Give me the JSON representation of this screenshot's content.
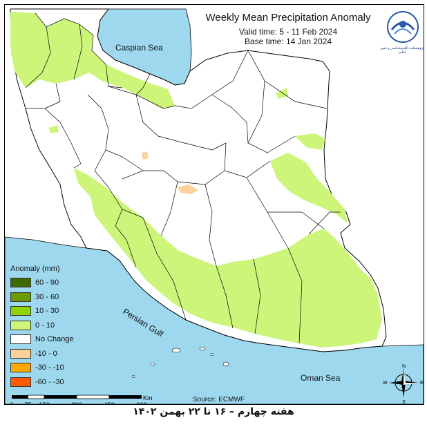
{
  "title": "Weekly Mean Precipitation Anomaly",
  "valid_time": "Valid time:  5 - 11 Feb 2024",
  "base_time": "Base time: 14 Jan 2024",
  "logo": {
    "icon": "org-logo-icon",
    "caption": "پژوهشکده اقلیم‌شناسی و تغییر اقلیم"
  },
  "water_labels": {
    "caspian": "Caspian Sea",
    "gulf": "Persian Gulf",
    "oman": "Oman Sea"
  },
  "legend": {
    "title": "Anomaly (mm)",
    "items": [
      {
        "label": "60 - 90",
        "color": "#3e6b00"
      },
      {
        "label": "30 - 60",
        "color": "#6a9a00"
      },
      {
        "label": "10 - 30",
        "color": "#8fd400"
      },
      {
        "label": "0 - 10",
        "color": "#ccf57a"
      },
      {
        "label": "No Change",
        "color": "#ffffff"
      },
      {
        "label": "-10 - 0",
        "color": "#fdd29a"
      },
      {
        "label": "-30 - -10",
        "color": "#ffa800"
      },
      {
        "label": "-60 - -30",
        "color": "#ff5a00"
      }
    ]
  },
  "scale": {
    "unit": "Km",
    "ticks": [
      "0",
      "75",
      "150",
      "300",
      "450",
      "600"
    ]
  },
  "source": "Source: ECMWF",
  "compass": {
    "icon": "compass-rose-icon",
    "n": "N",
    "s": "S",
    "e": "E",
    "w": "W"
  },
  "caption": "هفته چهارم – ۱۶ تا ۲۲ بهمن ۱۴۰۲",
  "colors": {
    "water": "#9ed8ef",
    "land": "#ffffff",
    "positive_light": "#ccf57a",
    "negative_light": "#fdd29a",
    "border": "#000000"
  }
}
